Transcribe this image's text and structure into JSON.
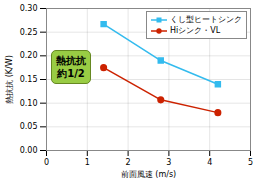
{
  "chart_data": {
    "type": "line",
    "xlabel": "前面風速 (m/s)",
    "ylabel": "熱抗抗 (K/W)",
    "xlim": [
      0,
      5
    ],
    "ylim": [
      0,
      0.3
    ],
    "xticks": [
      0,
      1,
      2,
      3,
      4,
      5
    ],
    "yticks": [
      {
        "value": 0,
        "label": "0.00"
      },
      0.05,
      {
        "value": 0.1,
        "label": "0.10"
      },
      0.15,
      {
        "value": 0.2,
        "label": "0.20"
      },
      0.25,
      {
        "value": 0.3,
        "label": "0.30"
      }
    ],
    "x": [
      1.4,
      2.8,
      4.2
    ],
    "series": [
      {
        "name": "くし型ヒートシンク",
        "color": "#33bbee",
        "marker": "square",
        "values": [
          0.267,
          0.19,
          0.14
        ]
      },
      {
        "name": "Hiシンク・VL",
        "color": "#cc2200",
        "marker": "circle",
        "values": [
          0.175,
          0.107,
          0.08
        ]
      }
    ],
    "grid": true,
    "legend": "upper right",
    "annotation": "熱抗抗\n約1/2"
  }
}
